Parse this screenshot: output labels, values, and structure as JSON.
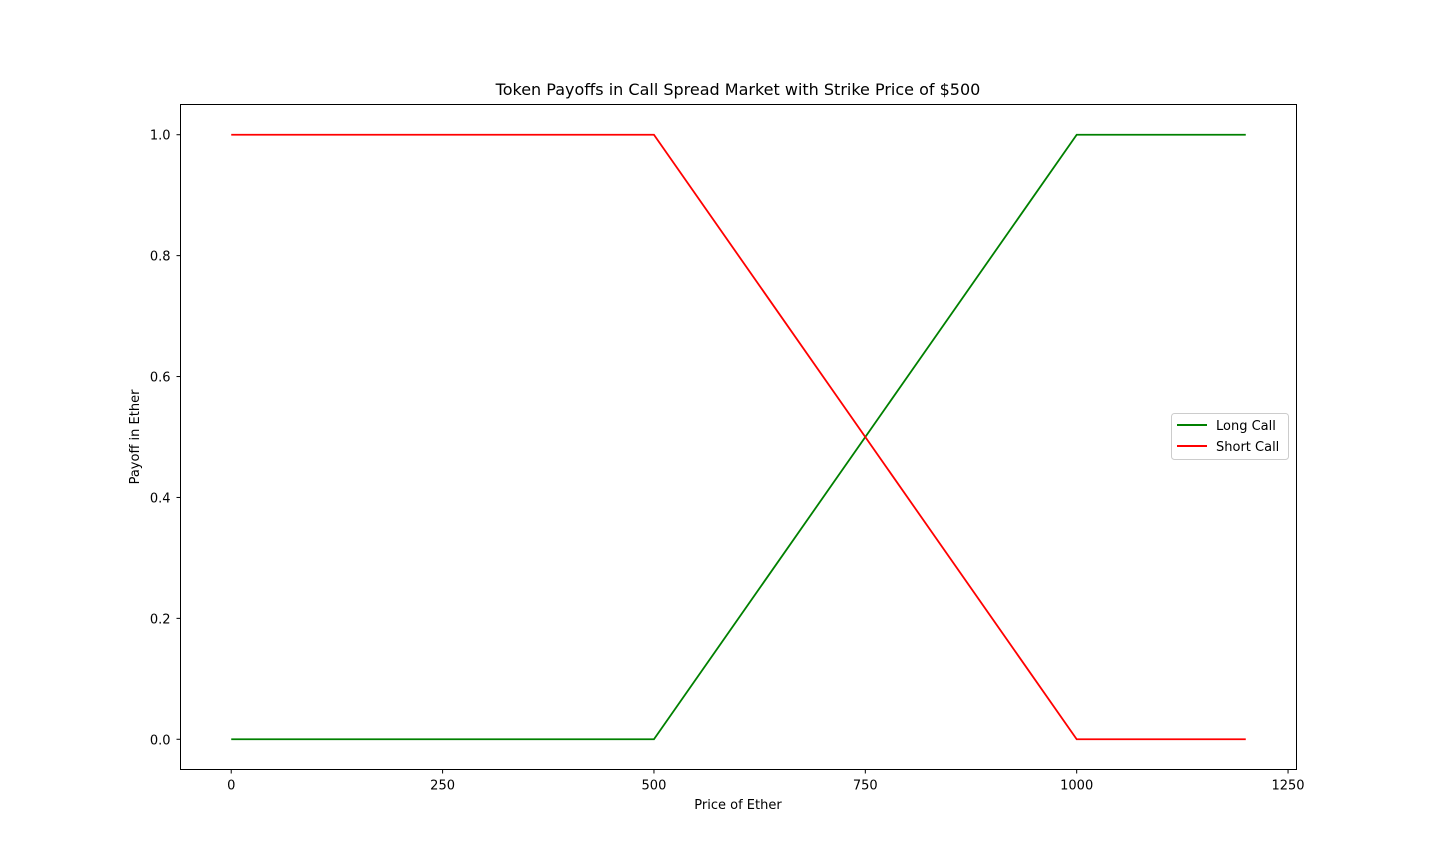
{
  "chart_data": {
    "type": "line",
    "title": "Token Payoffs in Call Spread Market with Strike Price of $500",
    "xlabel": "Price of Ether",
    "ylabel": "Payoff in Ether",
    "xlim": [
      -60,
      1260
    ],
    "ylim": [
      -0.05,
      1.05
    ],
    "xticks": [
      0,
      250,
      500,
      750,
      1000,
      1250
    ],
    "xtick_labels": [
      "0",
      "250",
      "500",
      "750",
      "1000",
      "1250"
    ],
    "yticks": [
      0.0,
      0.2,
      0.4,
      0.6,
      0.8,
      1.0
    ],
    "ytick_labels": [
      "0.0",
      "0.2",
      "0.4",
      "0.6",
      "0.8",
      "1.0"
    ],
    "grid": false,
    "legend_position": "center-right",
    "series": [
      {
        "name": "Long Call",
        "color": "#008000",
        "x": [
          0,
          500,
          1000,
          1200
        ],
        "y": [
          0.0,
          0.0,
          1.0,
          1.0
        ]
      },
      {
        "name": "Short Call",
        "color": "#ff0000",
        "x": [
          0,
          500,
          1000,
          1200
        ],
        "y": [
          1.0,
          1.0,
          0.0,
          0.0
        ]
      }
    ]
  }
}
